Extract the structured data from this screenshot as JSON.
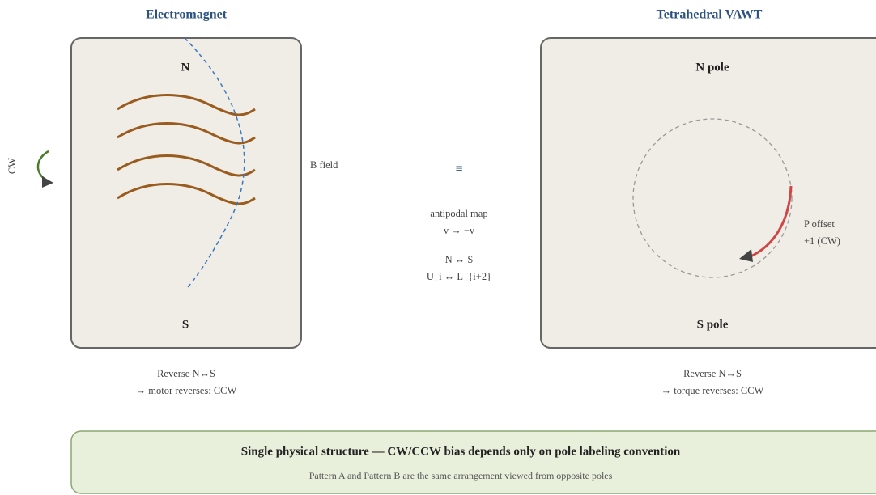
{
  "left": {
    "title": "Electromagnet",
    "north": "N",
    "south": "S",
    "rotation": "CW",
    "field_label": "B field",
    "caption": [
      "Reverse N↔S",
      "→ motor reverses: CCW"
    ]
  },
  "middle": {
    "symbol": "≡",
    "lines": [
      "antipodal map",
      "v → −v",
      "N ↔ S",
      "U_i ↔ L_{i+2}"
    ]
  },
  "right": {
    "title": "Tetrahedral VAWT",
    "north": "N pole",
    "south": "S pole",
    "offset": [
      "P offset",
      "+1 (CW)"
    ],
    "caption": [
      "Reverse N↔S",
      "→ torque reverses: CCW"
    ]
  },
  "banner": {
    "title": "Single physical structure — CW/CCW bias depends only on pole labeling convention",
    "subtitle": "Pattern A and Pattern B are the same arrangement viewed from opposite poles"
  }
}
